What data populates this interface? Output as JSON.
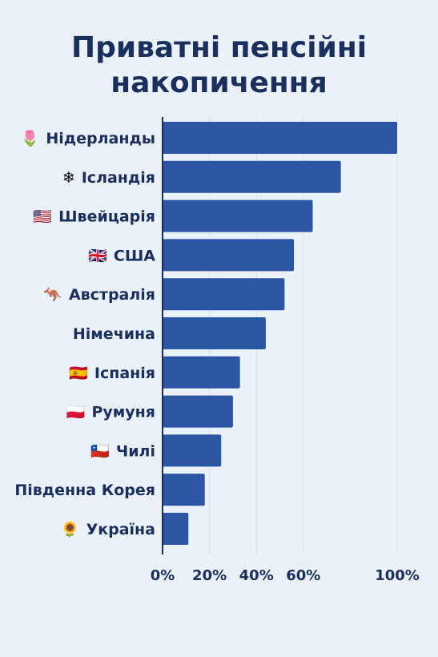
{
  "chart_data": {
    "type": "bar",
    "orientation": "horizontal",
    "title_lines": [
      "Приватні пенсійні",
      "накопичення"
    ],
    "xlabel": "",
    "ylabel": "",
    "xlim": [
      0,
      100
    ],
    "grid": true,
    "categories": [
      {
        "label": "Нідерланды",
        "icon": "tulip-icon",
        "glyph": "🌷"
      },
      {
        "label": "Ісландія",
        "icon": "snowflake-icon",
        "glyph": "❄"
      },
      {
        "label": "Швейцарія",
        "icon": "flag-us-icon",
        "glyph": "🇺🇸"
      },
      {
        "label": "США",
        "icon": "flag-uk-icon",
        "glyph": "🇬🇧"
      },
      {
        "label": "Австралія",
        "icon": "kangaroo-icon",
        "glyph": "🦘"
      },
      {
        "label": "Німечина",
        "icon": "",
        "glyph": ""
      },
      {
        "label": "Іспанія",
        "icon": "flag-spain-icon",
        "glyph": "🇪🇸"
      },
      {
        "label": "Румуня",
        "icon": "flag-poland-icon",
        "glyph": "🇵🇱"
      },
      {
        "label": "Чилі",
        "icon": "flag-chile-icon",
        "glyph": "🇨🇱"
      },
      {
        "label": "Південна Корея",
        "icon": "",
        "glyph": ""
      },
      {
        "label": "Україна",
        "icon": "sunflower-icon",
        "glyph": "🌻"
      }
    ],
    "values": [
      100,
      76,
      64,
      56,
      52,
      44,
      33,
      30,
      25,
      18,
      11
    ],
    "ticks": [
      {
        "value": 0,
        "label": "0%"
      },
      {
        "value": 20,
        "label": "20%"
      },
      {
        "value": 40,
        "label": "40%"
      },
      {
        "value": 60,
        "label": "60%"
      },
      {
        "value": 100,
        "label": "100%"
      }
    ],
    "colors": {
      "bar": "#2a56a3",
      "text": "#1a2f5c",
      "background": "#eaf1f9"
    }
  }
}
